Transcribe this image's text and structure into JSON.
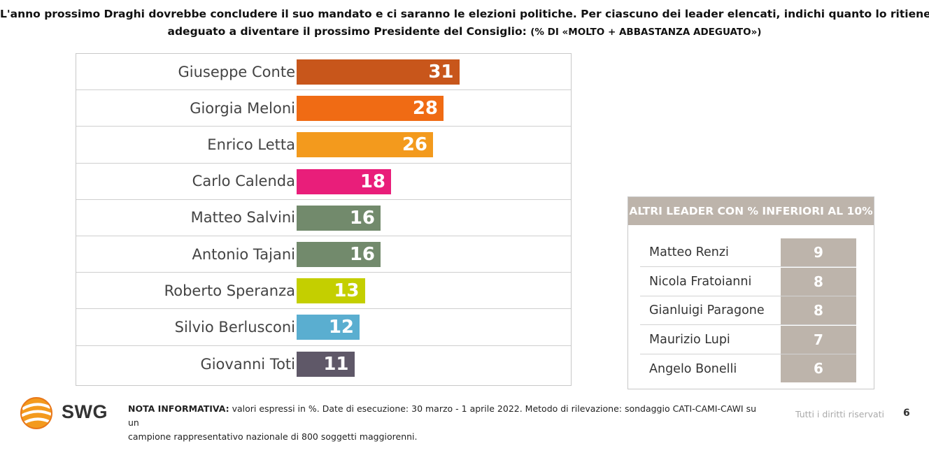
{
  "title": {
    "line1": "L'anno prossimo Draghi dovrebbe concludere il suo mandato e ci saranno le elezioni politiche. Per ciascuno dei leader elencati, indichi quanto lo ritiene",
    "line2": "adeguato a diventare il prossimo Presidente del Consiglio:",
    "note": "(% DI «MOLTO + ABBASTANZA ADEGUATO»)"
  },
  "chart_data": {
    "type": "bar",
    "orientation": "horizontal",
    "categories": [
      "Giuseppe Conte",
      "Giorgia Meloni",
      "Enrico Letta",
      "Carlo Calenda",
      "Matteo Salvini",
      "Antonio Tajani",
      "Roberto Speranza",
      "Silvio Berlusconi",
      "Giovanni Toti"
    ],
    "values": [
      31,
      28,
      26,
      18,
      16,
      16,
      13,
      12,
      11
    ],
    "colors": [
      "#c8561b",
      "#f06b14",
      "#f39a1d",
      "#e91e7a",
      "#728a6c",
      "#728a6c",
      "#c4cf00",
      "#5aaed0",
      "#5f5868"
    ],
    "xlim": [
      0,
      52
    ]
  },
  "others": {
    "header": "ALTRI LEADER CON % INFERIORI AL 10%",
    "accent_color": "#bdb4ab",
    "items": [
      {
        "name": "Matteo Renzi",
        "value": "9"
      },
      {
        "name": "Nicola Fratoianni",
        "value": "8"
      },
      {
        "name": "Gianluigi Paragone",
        "value": "8"
      },
      {
        "name": "Maurizio Lupi",
        "value": "7"
      },
      {
        "name": "Angelo Bonelli",
        "value": "6"
      }
    ]
  },
  "footer": {
    "logo_text": "SWG",
    "note_label": "NOTA INFORMATIVA:",
    "note_text": " valori espressi in %. Date di esecuzione: 30 marzo - 1 aprile 2022. Metodo di rilevazione: sondaggio CATI-CAMI-CAWI su un",
    "note_text2": "campione rappresentativo nazionale di 800 soggetti maggiorenni.",
    "rights": "Tutti i diritti riservati",
    "page_number": "6"
  }
}
